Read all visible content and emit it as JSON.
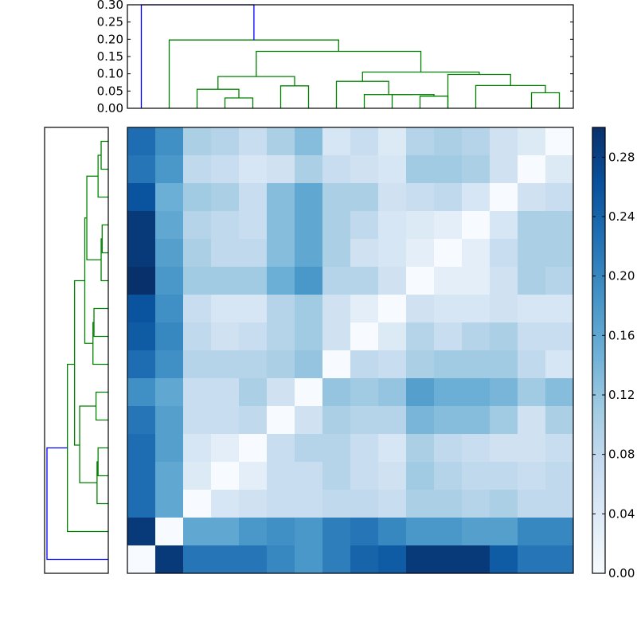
{
  "chart_data": [
    {
      "type": "heatmap",
      "rows": 16,
      "cols": 16,
      "colormap": "Blues",
      "vmin": 0.0,
      "vmax": 0.3,
      "values": [
        [
          0.23,
          0.19,
          0.1,
          0.09,
          0.07,
          0.1,
          0.13,
          0.05,
          0.07,
          0.04,
          0.09,
          0.1,
          0.09,
          0.06,
          0.04,
          0.0
        ],
        [
          0.22,
          0.18,
          0.08,
          0.07,
          0.05,
          0.06,
          0.1,
          0.07,
          0.06,
          0.05,
          0.11,
          0.11,
          0.1,
          0.06,
          0.0,
          0.04
        ],
        [
          0.26,
          0.15,
          0.11,
          0.1,
          0.07,
          0.13,
          0.16,
          0.1,
          0.1,
          0.06,
          0.07,
          0.08,
          0.05,
          0.0,
          0.06,
          0.07
        ],
        [
          0.29,
          0.16,
          0.09,
          0.08,
          0.07,
          0.13,
          0.16,
          0.1,
          0.08,
          0.05,
          0.04,
          0.03,
          0.0,
          0.05,
          0.1,
          0.1
        ],
        [
          0.29,
          0.17,
          0.1,
          0.08,
          0.08,
          0.13,
          0.16,
          0.1,
          0.06,
          0.05,
          0.03,
          0.0,
          0.03,
          0.07,
          0.1,
          0.1
        ],
        [
          0.3,
          0.18,
          0.11,
          0.11,
          0.11,
          0.15,
          0.18,
          0.09,
          0.09,
          0.06,
          0.0,
          0.03,
          0.03,
          0.06,
          0.1,
          0.09
        ],
        [
          0.26,
          0.19,
          0.07,
          0.05,
          0.05,
          0.09,
          0.11,
          0.06,
          0.03,
          0.0,
          0.06,
          0.05,
          0.05,
          0.06,
          0.05,
          0.05
        ],
        [
          0.25,
          0.2,
          0.08,
          0.06,
          0.07,
          0.09,
          0.11,
          0.06,
          0.0,
          0.04,
          0.09,
          0.07,
          0.09,
          0.1,
          0.07,
          0.07
        ],
        [
          0.23,
          0.19,
          0.09,
          0.09,
          0.09,
          0.1,
          0.12,
          0.0,
          0.08,
          0.07,
          0.1,
          0.11,
          0.11,
          0.11,
          0.08,
          0.05
        ],
        [
          0.19,
          0.16,
          0.07,
          0.07,
          0.1,
          0.06,
          0.0,
          0.12,
          0.11,
          0.12,
          0.17,
          0.15,
          0.15,
          0.14,
          0.11,
          0.13
        ],
        [
          0.22,
          0.17,
          0.07,
          0.07,
          0.08,
          0.0,
          0.06,
          0.1,
          0.09,
          0.09,
          0.14,
          0.13,
          0.13,
          0.11,
          0.06,
          0.1
        ],
        [
          0.23,
          0.17,
          0.05,
          0.03,
          0.0,
          0.07,
          0.09,
          0.09,
          0.07,
          0.05,
          0.1,
          0.08,
          0.07,
          0.06,
          0.06,
          0.07
        ],
        [
          0.23,
          0.16,
          0.04,
          0.0,
          0.03,
          0.07,
          0.07,
          0.09,
          0.07,
          0.06,
          0.11,
          0.09,
          0.08,
          0.08,
          0.07,
          0.08
        ],
        [
          0.23,
          0.16,
          0.0,
          0.05,
          0.06,
          0.07,
          0.07,
          0.08,
          0.08,
          0.07,
          0.1,
          0.1,
          0.09,
          0.1,
          0.08,
          0.08
        ],
        [
          0.29,
          0.0,
          0.16,
          0.16,
          0.18,
          0.19,
          0.18,
          0.21,
          0.22,
          0.2,
          0.18,
          0.18,
          0.17,
          0.17,
          0.2,
          0.2
        ],
        [
          0.0,
          0.29,
          0.22,
          0.22,
          0.22,
          0.2,
          0.18,
          0.21,
          0.24,
          0.25,
          0.29,
          0.29,
          0.29,
          0.25,
          0.22,
          0.22
        ]
      ]
    },
    {
      "type": "line",
      "role": "top-dendrogram",
      "yticks": [
        "0.00",
        "0.05",
        "0.10",
        "0.15",
        "0.20",
        "0.25",
        "0.30"
      ],
      "ytick_values": [
        0.0,
        0.05,
        0.1,
        0.15,
        0.2,
        0.25,
        0.3
      ],
      "ylim": [
        0.0,
        0.3
      ],
      "colors": {
        "root": "#0000ff",
        "cluster": "#008000"
      },
      "links": [
        {
          "x": [
            14.5,
            14.5,
            15.5,
            15.5
          ],
          "y": [
            0.0,
            0.045,
            0.045,
            0.0
          ],
          "c": "cluster"
        },
        {
          "x": [
            12.5,
            12.5,
            15.0,
            15.0
          ],
          "y": [
            0.0,
            0.066,
            0.066,
            0.045
          ],
          "c": "cluster"
        },
        {
          "x": [
            11.5,
            11.5,
            13.75,
            13.75
          ],
          "y": [
            0.0,
            0.098,
            0.098,
            0.066
          ],
          "c": "cluster"
        },
        {
          "x": [
            10.5,
            10.5,
            11.5,
            11.5
          ],
          "y": [
            0.0,
            0.035,
            0.035,
            0.0
          ],
          "c": "cluster"
        },
        {
          "x": [
            9.5,
            9.5,
            11.0,
            11.0
          ],
          "y": [
            0.0,
            0.04,
            0.04,
            0.035
          ],
          "c": "cluster"
        },
        {
          "x": [
            8.5,
            8.5,
            10.25,
            10.25
          ],
          "y": [
            0.0,
            0.04,
            0.04,
            0.04
          ],
          "c": "cluster"
        },
        {
          "x": [
            7.5,
            7.5,
            9.375,
            9.375
          ],
          "y": [
            0.0,
            0.078,
            0.078,
            0.04
          ],
          "c": "cluster"
        },
        {
          "x": [
            8.4375,
            8.4375,
            12.625,
            12.625
          ],
          "y": [
            0.078,
            0.105,
            0.105,
            0.098
          ],
          "c": "cluster"
        },
        {
          "x": [
            5.5,
            5.5,
            6.5,
            6.5
          ],
          "y": [
            0.0,
            0.065,
            0.065,
            0.0
          ],
          "c": "cluster"
        },
        {
          "x": [
            3.5,
            3.5,
            4.5,
            4.5
          ],
          "y": [
            0.0,
            0.03,
            0.03,
            0.0
          ],
          "c": "cluster"
        },
        {
          "x": [
            2.5,
            2.5,
            4.0,
            4.0
          ],
          "y": [
            0.0,
            0.055,
            0.055,
            0.03
          ],
          "c": "cluster"
        },
        {
          "x": [
            3.25,
            3.25,
            6.0,
            6.0
          ],
          "y": [
            0.055,
            0.092,
            0.092,
            0.065
          ],
          "c": "cluster"
        },
        {
          "x": [
            4.625,
            4.625,
            10.53,
            10.53
          ],
          "y": [
            0.092,
            0.165,
            0.165,
            0.105
          ],
          "c": "cluster"
        },
        {
          "x": [
            1.5,
            1.5,
            7.58,
            7.58
          ],
          "y": [
            0.0,
            0.198,
            0.198,
            0.165
          ],
          "c": "cluster"
        },
        {
          "x": [
            0.5,
            0.5,
            4.54,
            4.54
          ],
          "y": [
            0.0,
            0.3,
            0.3,
            0.198
          ],
          "c": "root"
        }
      ]
    },
    {
      "type": "line",
      "role": "left-dendrogram",
      "colors": {
        "root": "#0000ff",
        "cluster": "#008000"
      },
      "links": [
        {
          "x": [
            0.0,
            0.035,
            0.035,
            0.0
          ],
          "y": [
            0.5,
            0.5,
            1.5,
            1.5
          ],
          "c": "cluster"
        },
        {
          "x": [
            0.035,
            0.05,
            0.05,
            0.0
          ],
          "y": [
            1.0,
            1.0,
            2.5,
            2.5
          ],
          "c": "cluster"
        },
        {
          "x": [
            0.0,
            0.03,
            0.03,
            0.0
          ],
          "y": [
            3.5,
            3.5,
            4.5,
            4.5
          ],
          "c": "cluster"
        },
        {
          "x": [
            0.03,
            0.035,
            0.035,
            0.0
          ],
          "y": [
            4.0,
            4.0,
            5.5,
            5.5
          ],
          "c": "cluster"
        },
        {
          "x": [
            0.05,
            0.105,
            0.105,
            0.035
          ],
          "y": [
            1.75,
            1.75,
            4.75,
            4.75
          ],
          "c": "cluster"
        },
        {
          "x": [
            0.0,
            0.07,
            0.07,
            0.0
          ],
          "y": [
            6.5,
            6.5,
            7.5,
            7.5
          ],
          "c": "cluster"
        },
        {
          "x": [
            0.07,
            0.075,
            0.075,
            0.0
          ],
          "y": [
            7.0,
            7.0,
            8.5,
            8.5
          ],
          "c": "cluster"
        },
        {
          "x": [
            0.075,
            0.115,
            0.115,
            0.105
          ],
          "y": [
            7.75,
            7.75,
            3.25,
            3.25
          ],
          "c": "cluster"
        },
        {
          "x": [
            0.0,
            0.06,
            0.06,
            0.0
          ],
          "y": [
            9.5,
            9.5,
            10.5,
            10.5
          ],
          "c": "cluster"
        },
        {
          "x": [
            0.0,
            0.05,
            0.05,
            0.0
          ],
          "y": [
            11.5,
            11.5,
            12.5,
            12.5
          ],
          "c": "cluster"
        },
        {
          "x": [
            0.05,
            0.055,
            0.055,
            0.0
          ],
          "y": [
            12.0,
            12.0,
            13.5,
            13.5
          ],
          "c": "cluster"
        },
        {
          "x": [
            0.06,
            0.14,
            0.14,
            0.055
          ],
          "y": [
            10.0,
            10.0,
            12.75,
            12.75
          ],
          "c": "cluster"
        },
        {
          "x": [
            0.14,
            0.165,
            0.165,
            0.115
          ],
          "y": [
            11.4,
            11.4,
            5.5,
            5.5
          ],
          "c": "cluster"
        },
        {
          "x": [
            0.0,
            0.2,
            0.2,
            0.165
          ],
          "y": [
            14.5,
            14.5,
            8.5,
            8.5
          ],
          "c": "cluster"
        },
        {
          "x": [
            0.0,
            0.3,
            0.3,
            0.2
          ],
          "y": [
            15.5,
            15.5,
            11.5,
            11.5
          ],
          "c": "root"
        }
      ]
    },
    {
      "type": "colorbar",
      "ticks": [
        "0.00",
        "0.04",
        "0.08",
        "0.12",
        "0.16",
        "0.20",
        "0.24",
        "0.28"
      ],
      "tick_values": [
        0.0,
        0.04,
        0.08,
        0.12,
        0.16,
        0.2,
        0.24,
        0.28
      ],
      "vmin": 0.0,
      "vmax": 0.3
    }
  ]
}
